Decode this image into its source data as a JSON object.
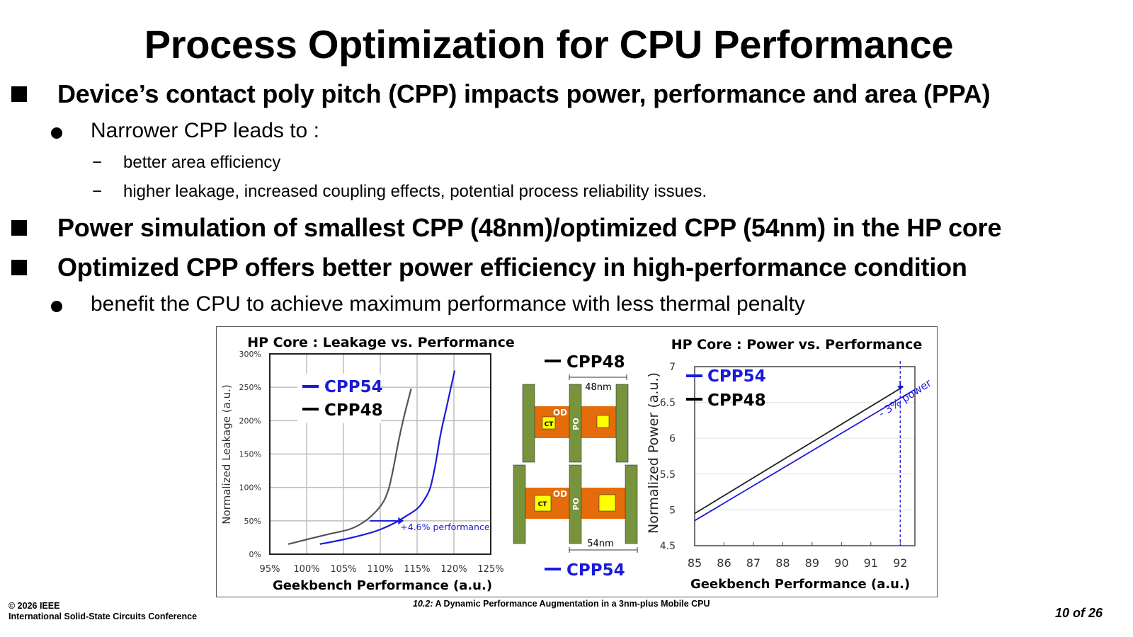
{
  "slide": {
    "title": "Process Optimization for CPU Performance",
    "bullets": [
      {
        "level": 1,
        "text": "Device’s contact poly pitch (CPP) impacts power, performance and area (PPA)"
      },
      {
        "level": 2,
        "text": "Narrower CPP leads to :"
      },
      {
        "level": 3,
        "marker": "−",
        "text": "better area efficiency"
      },
      {
        "level": 3,
        "marker": "−",
        "text": "higher leakage, increased coupling effects, potential process reliability issues."
      },
      {
        "level": 1,
        "text": "Power simulation of smallest CPP (48nm)/optimized CPP (54nm) in the HP core"
      },
      {
        "level": 1,
        "text": "Optimized CPP offers better power efficiency in high-performance condition"
      },
      {
        "level": 2,
        "text": "benefit the CPU to achieve maximum performance with less thermal penalty"
      }
    ]
  },
  "diagram": {
    "legend_top": "CPP48",
    "legend_bottom": "CPP54",
    "pitch_top": "48nm",
    "pitch_bottom": "54nm",
    "label_od": "OD",
    "label_po": "PO",
    "label_ct": "CT",
    "colors": {
      "poly": "#77933c",
      "od": "#e46c0a",
      "ct": "#ffff00",
      "cpp48": "#000000",
      "cpp54": "#1a1adb"
    }
  },
  "footer": {
    "copyright": "© 2026 IEEE",
    "conference": "International Solid-State Circuits Conference",
    "paper_id": "10.2:",
    "paper_title": "A Dynamic Performance Augmentation in a 3nm-plus Mobile CPU",
    "page": "10 of 26"
  },
  "chart_data": [
    {
      "type": "line",
      "title": "HP Core : Leakage vs. Performance",
      "xlabel": "Geekbench Performance (a.u.)",
      "ylabel": "Normalized Leakage (a.u.)",
      "xlim": [
        95,
        125
      ],
      "ylim": [
        0,
        300
      ],
      "x_ticks": [
        "95%",
        "100%",
        "105%",
        "110%",
        "115%",
        "120%",
        "125%"
      ],
      "y_ticks": [
        "0%",
        "50%",
        "100%",
        "150%",
        "200%",
        "250%",
        "300%"
      ],
      "grid": true,
      "legend_position": "top-left",
      "series": [
        {
          "name": "CPP54",
          "color": "#1a1adb",
          "x": [
            101.8,
            105,
            108,
            110,
            112,
            113.5,
            115,
            116,
            116.8,
            117.5,
            118.2,
            119,
            119.6,
            120.1
          ],
          "y": [
            15,
            22,
            30,
            37,
            47,
            57,
            68,
            82,
            100,
            135,
            180,
            220,
            250,
            275
          ]
        },
        {
          "name": "CPP48",
          "color": "#555555",
          "x": [
            97.5,
            100,
            103,
            106,
            108,
            109.5,
            110.5,
            111.2,
            111.8,
            112.5,
            113.2,
            114.2
          ],
          "y": [
            15,
            22,
            30,
            38,
            50,
            65,
            80,
            100,
            130,
            170,
            205,
            248
          ]
        }
      ],
      "annotations": [
        {
          "text": "+4.6% performance",
          "from": [
            108.6,
            50
          ],
          "to": [
            113.2,
            50
          ],
          "color": "#1a1adb"
        }
      ]
    },
    {
      "type": "line",
      "title": "HP Core : Power vs. Performance",
      "xlabel": "Geekbench Performance (a.u.)",
      "ylabel": "Normalized Power (a.u.)",
      "xlim": [
        85,
        92.5
      ],
      "ylim": [
        4.5,
        7
      ],
      "x_ticks": [
        "85",
        "86",
        "87",
        "88",
        "89",
        "90",
        "91",
        "92"
      ],
      "y_ticks": [
        "4.5",
        "5",
        "5.5",
        "6",
        "6.5",
        "7"
      ],
      "grid": true,
      "legend_position": "top-left",
      "series": [
        {
          "name": "CPP54",
          "color": "#1a1adb",
          "x": [
            85,
            92.5
          ],
          "y": [
            4.85,
            6.68
          ]
        },
        {
          "name": "CPP48",
          "color": "#222222",
          "x": [
            85,
            92.1
          ],
          "y": [
            4.95,
            6.72
          ]
        }
      ],
      "annotations": [
        {
          "text": "- 3% power",
          "at_x": 92,
          "marker_line": "dashed-vertical",
          "color": "#1a1adb"
        }
      ]
    }
  ]
}
